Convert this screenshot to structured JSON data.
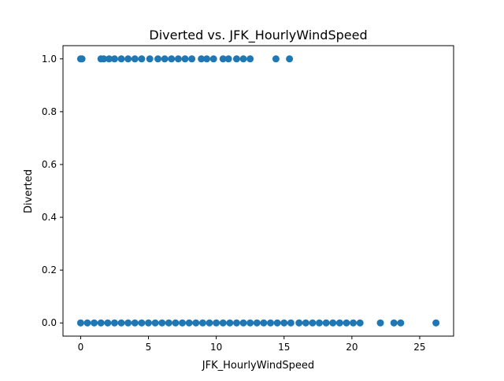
{
  "chart_data": {
    "type": "scatter",
    "title": "Diverted vs. JFK_HourlyWindSpeed",
    "xlabel": "JFK_HourlyWindSpeed",
    "ylabel": "Diverted",
    "xlim": [
      -1.3,
      27.5
    ],
    "ylim": [
      -0.05,
      1.05
    ],
    "xticks": [
      0,
      5,
      10,
      15,
      20,
      25
    ],
    "xtick_labels": [
      "0",
      "5",
      "10",
      "15",
      "20",
      "25"
    ],
    "yticks": [
      0.0,
      0.2,
      0.4,
      0.6,
      0.8,
      1.0
    ],
    "ytick_labels": [
      "0.0",
      "0.2",
      "0.4",
      "0.6",
      "0.8",
      "1.0"
    ],
    "grid": false,
    "marker_color": "#1f77b4",
    "series": [
      {
        "points": [
          {
            "x": 0,
            "y": 1
          },
          {
            "x": 0.1,
            "y": 1
          },
          {
            "x": 1.5,
            "y": 1
          },
          {
            "x": 1.7,
            "y": 1
          },
          {
            "x": 2.1,
            "y": 1
          },
          {
            "x": 2.5,
            "y": 1
          },
          {
            "x": 3.0,
            "y": 1
          },
          {
            "x": 3.5,
            "y": 1
          },
          {
            "x": 4.0,
            "y": 1
          },
          {
            "x": 4.5,
            "y": 1
          },
          {
            "x": 5.1,
            "y": 1
          },
          {
            "x": 5.7,
            "y": 1
          },
          {
            "x": 6.2,
            "y": 1
          },
          {
            "x": 6.7,
            "y": 1
          },
          {
            "x": 7.2,
            "y": 1
          },
          {
            "x": 7.7,
            "y": 1
          },
          {
            "x": 8.2,
            "y": 1
          },
          {
            "x": 8.9,
            "y": 1
          },
          {
            "x": 9.3,
            "y": 1
          },
          {
            "x": 9.8,
            "y": 1
          },
          {
            "x": 10.5,
            "y": 1
          },
          {
            "x": 10.9,
            "y": 1
          },
          {
            "x": 11.5,
            "y": 1
          },
          {
            "x": 12.0,
            "y": 1
          },
          {
            "x": 12.5,
            "y": 1
          },
          {
            "x": 14.4,
            "y": 1
          },
          {
            "x": 15.4,
            "y": 1
          },
          {
            "x": 0,
            "y": 0
          },
          {
            "x": 0.5,
            "y": 0
          },
          {
            "x": 1.0,
            "y": 0
          },
          {
            "x": 1.5,
            "y": 0
          },
          {
            "x": 2.0,
            "y": 0
          },
          {
            "x": 2.5,
            "y": 0
          },
          {
            "x": 3.0,
            "y": 0
          },
          {
            "x": 3.5,
            "y": 0
          },
          {
            "x": 4.0,
            "y": 0
          },
          {
            "x": 4.5,
            "y": 0
          },
          {
            "x": 5.0,
            "y": 0
          },
          {
            "x": 5.5,
            "y": 0
          },
          {
            "x": 6.0,
            "y": 0
          },
          {
            "x": 6.5,
            "y": 0
          },
          {
            "x": 7.0,
            "y": 0
          },
          {
            "x": 7.5,
            "y": 0
          },
          {
            "x": 8.0,
            "y": 0
          },
          {
            "x": 8.5,
            "y": 0
          },
          {
            "x": 9.0,
            "y": 0
          },
          {
            "x": 9.5,
            "y": 0
          },
          {
            "x": 10.0,
            "y": 0
          },
          {
            "x": 10.5,
            "y": 0
          },
          {
            "x": 11.0,
            "y": 0
          },
          {
            "x": 11.5,
            "y": 0
          },
          {
            "x": 12.0,
            "y": 0
          },
          {
            "x": 12.5,
            "y": 0
          },
          {
            "x": 13.0,
            "y": 0
          },
          {
            "x": 13.5,
            "y": 0
          },
          {
            "x": 14.0,
            "y": 0
          },
          {
            "x": 14.5,
            "y": 0
          },
          {
            "x": 15.0,
            "y": 0
          },
          {
            "x": 15.5,
            "y": 0
          },
          {
            "x": 16.1,
            "y": 0
          },
          {
            "x": 16.6,
            "y": 0
          },
          {
            "x": 17.1,
            "y": 0
          },
          {
            "x": 17.6,
            "y": 0
          },
          {
            "x": 18.1,
            "y": 0
          },
          {
            "x": 18.6,
            "y": 0
          },
          {
            "x": 19.1,
            "y": 0
          },
          {
            "x": 19.6,
            "y": 0
          },
          {
            "x": 20.1,
            "y": 0
          },
          {
            "x": 20.6,
            "y": 0
          },
          {
            "x": 22.1,
            "y": 0
          },
          {
            "x": 23.1,
            "y": 0
          },
          {
            "x": 23.6,
            "y": 0
          },
          {
            "x": 26.2,
            "y": 0
          }
        ]
      }
    ]
  }
}
